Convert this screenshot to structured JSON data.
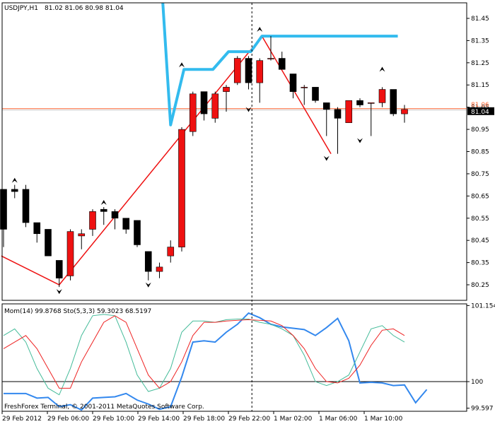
{
  "chart_data": [
    {
      "type": "candlestick",
      "header": {
        "symbol": "USDJPY,H1",
        "ohlc": "81.02 81.06 80.98 81.04"
      },
      "ylim": [
        80.18,
        81.52
      ],
      "y_ticks": [
        "81.45",
        "81.35",
        "81.25",
        "81.15",
        "81.05",
        "80.95",
        "80.85",
        "80.75",
        "80.65",
        "80.55",
        "80.45",
        "80.35",
        "80.25"
      ],
      "current_price": "81.04",
      "bid_ask_label": "81.06",
      "colors": {
        "bull": "#ee1111",
        "bear": "#000000",
        "zigzag": "#ee1111",
        "trend": "#33bbee",
        "price_line": "#ff6633"
      },
      "candles": [
        {
          "o": 80.68,
          "h": 80.68,
          "l": 80.42,
          "c": 80.5
        },
        {
          "o": 80.68,
          "h": 80.7,
          "l": 80.64,
          "c": 80.67
        },
        {
          "o": 80.68,
          "h": 80.7,
          "l": 80.51,
          "c": 80.53
        },
        {
          "o": 80.53,
          "h": 80.53,
          "l": 80.44,
          "c": 80.48
        },
        {
          "o": 80.5,
          "h": 80.5,
          "l": 80.38,
          "c": 80.38
        },
        {
          "o": 80.36,
          "h": 80.36,
          "l": 80.24,
          "c": 80.28
        },
        {
          "o": 80.29,
          "h": 80.5,
          "l": 80.27,
          "c": 80.49
        },
        {
          "o": 80.47,
          "h": 80.5,
          "l": 80.41,
          "c": 80.48
        },
        {
          "o": 80.5,
          "h": 80.59,
          "l": 80.47,
          "c": 80.58
        },
        {
          "o": 80.59,
          "h": 80.6,
          "l": 80.52,
          "c": 80.58
        },
        {
          "o": 80.58,
          "h": 80.59,
          "l": 80.5,
          "c": 80.55
        },
        {
          "o": 80.55,
          "h": 80.55,
          "l": 80.48,
          "c": 80.5
        },
        {
          "o": 80.54,
          "h": 80.54,
          "l": 80.42,
          "c": 80.43
        },
        {
          "o": 80.4,
          "h": 80.4,
          "l": 80.27,
          "c": 80.31
        },
        {
          "o": 80.31,
          "h": 80.35,
          "l": 80.28,
          "c": 80.33
        },
        {
          "o": 80.38,
          "h": 80.45,
          "l": 80.35,
          "c": 80.42
        },
        {
          "o": 80.42,
          "h": 80.96,
          "l": 80.4,
          "c": 80.95
        },
        {
          "o": 80.94,
          "h": 81.12,
          "l": 80.92,
          "c": 81.11
        },
        {
          "o": 81.12,
          "h": 81.12,
          "l": 80.99,
          "c": 81.02
        },
        {
          "o": 81.0,
          "h": 81.12,
          "l": 80.98,
          "c": 81.11
        },
        {
          "o": 81.12,
          "h": 81.15,
          "l": 81.03,
          "c": 81.14
        },
        {
          "o": 81.16,
          "h": 81.28,
          "l": 81.15,
          "c": 81.27
        },
        {
          "o": 81.27,
          "h": 81.28,
          "l": 81.13,
          "c": 81.16
        },
        {
          "o": 81.16,
          "h": 81.27,
          "l": 81.07,
          "c": 81.26
        },
        {
          "o": 81.27,
          "h": 81.37,
          "l": 81.26,
          "c": 81.27
        },
        {
          "o": 81.27,
          "h": 81.3,
          "l": 81.22,
          "c": 81.22
        },
        {
          "o": 81.2,
          "h": 81.2,
          "l": 81.09,
          "c": 81.12
        },
        {
          "o": 81.14,
          "h": 81.15,
          "l": 81.06,
          "c": 81.14
        },
        {
          "o": 81.14,
          "h": 81.14,
          "l": 81.07,
          "c": 81.08
        },
        {
          "o": 81.07,
          "h": 81.07,
          "l": 80.92,
          "c": 81.04
        },
        {
          "o": 81.04,
          "h": 81.05,
          "l": 80.84,
          "c": 81.0
        },
        {
          "o": 80.98,
          "h": 81.08,
          "l": 80.98,
          "c": 81.08
        },
        {
          "o": 81.08,
          "h": 81.09,
          "l": 81.05,
          "c": 81.06
        },
        {
          "o": 81.07,
          "h": 81.07,
          "l": 80.92,
          "c": 81.07
        },
        {
          "o": 81.07,
          "h": 81.14,
          "l": 81.05,
          "c": 81.13
        },
        {
          "o": 81.13,
          "h": 81.13,
          "l": 81.01,
          "c": 81.02
        },
        {
          "o": 81.02,
          "h": 81.06,
          "l": 80.98,
          "c": 81.04
        }
      ],
      "fractals_up": [
        {
          "i": 1,
          "v": 80.7
        },
        {
          "i": 9,
          "v": 80.6
        },
        {
          "i": 16,
          "v": 81.22
        },
        {
          "i": 23,
          "v": 81.38
        },
        {
          "i": 34,
          "v": 81.2
        }
      ],
      "fractals_down": [
        {
          "i": 5,
          "v": 80.24
        },
        {
          "i": 13,
          "v": 80.27
        },
        {
          "i": 22,
          "v": 81.06
        },
        {
          "i": 29,
          "v": 80.84
        },
        {
          "i": 32,
          "v": 80.92
        }
      ],
      "zigzag": [
        {
          "x": -0.2,
          "v": 80.38
        },
        {
          "x": 5,
          "v": 80.25
        },
        {
          "x": 23.2,
          "v": 81.37
        },
        {
          "x": 29.4,
          "v": 80.84
        }
      ],
      "trend_line": [
        {
          "x": 14.3,
          "v": 81.52
        },
        {
          "x": 15.0,
          "v": 80.97
        },
        {
          "x": 16.2,
          "v": 81.22
        },
        {
          "x": 18.8,
          "v": 81.22
        },
        {
          "x": 20.2,
          "v": 81.3
        },
        {
          "x": 22.2,
          "v": 81.3
        },
        {
          "x": 23.2,
          "v": 81.37
        },
        {
          "x": 35.4,
          "v": 81.37
        }
      ],
      "x_ticks": [
        "29 Feb 2012",
        "29 Feb 06:00",
        "29 Feb 10:00",
        "29 Feb 14:00",
        "29 Feb 18:00",
        "29 Feb 22:00",
        "1 Mar 02:00",
        "1 Mar 06:00",
        "1 Mar 10:00"
      ]
    },
    {
      "type": "line",
      "header": "Mom(14) 99.8768   Sto(5,3,3) 59.3023 68.5197",
      "ylim": [
        99.55,
        101.18
      ],
      "y_ticks": [
        "101.1545",
        "100",
        "99.597"
      ],
      "reference_level": 100,
      "series": [
        {
          "name": "Mom(14)",
          "color": "#3388ee",
          "values": [
            99.82,
            99.82,
            99.82,
            99.75,
            99.76,
            99.62,
            99.65,
            99.57,
            99.75,
            99.76,
            99.77,
            99.82,
            99.72,
            99.66,
            99.58,
            99.62,
            100.07,
            100.6,
            100.62,
            100.6,
            100.75,
            100.87,
            101.04,
            100.97,
            100.87,
            100.83,
            100.81,
            100.79,
            100.7,
            100.82,
            100.96,
            100.62,
            99.98,
            99.99,
            99.98,
            99.94,
            99.95,
            99.68,
            99.88
          ]
        },
        {
          "name": "Sto(5,3,3) main",
          "color": "#44bb99",
          "values": [
            100.7,
            100.8,
            100.6,
            100.2,
            99.9,
            99.8,
            100.2,
            100.7,
            101.0,
            101.02,
            101.0,
            100.6,
            100.1,
            99.85,
            99.9,
            100.2,
            100.75,
            100.92,
            100.92,
            100.9,
            100.94,
            100.95,
            100.95,
            100.9,
            100.87,
            100.8,
            100.7,
            100.4,
            100.0,
            99.94,
            100.0,
            100.1,
            100.45,
            100.8,
            100.85,
            100.7,
            100.6
          ]
        },
        {
          "name": "Sto(5,3,3) signal",
          "color": "#ee2222",
          "values": [
            100.5,
            100.6,
            100.7,
            100.5,
            100.2,
            99.9,
            99.9,
            100.3,
            100.6,
            100.9,
            101.0,
            100.9,
            100.5,
            100.1,
            99.9,
            100.0,
            100.3,
            100.7,
            100.9,
            100.9,
            100.92,
            100.93,
            100.94,
            100.93,
            100.92,
            100.85,
            100.7,
            100.5,
            100.2,
            100.0,
            99.98,
            100.05,
            100.25,
            100.55,
            100.78,
            100.8,
            100.7
          ]
        }
      ]
    }
  ],
  "footer": "FreshForex Terminal, © 2001-2011 MetaQuotes Software Corp."
}
